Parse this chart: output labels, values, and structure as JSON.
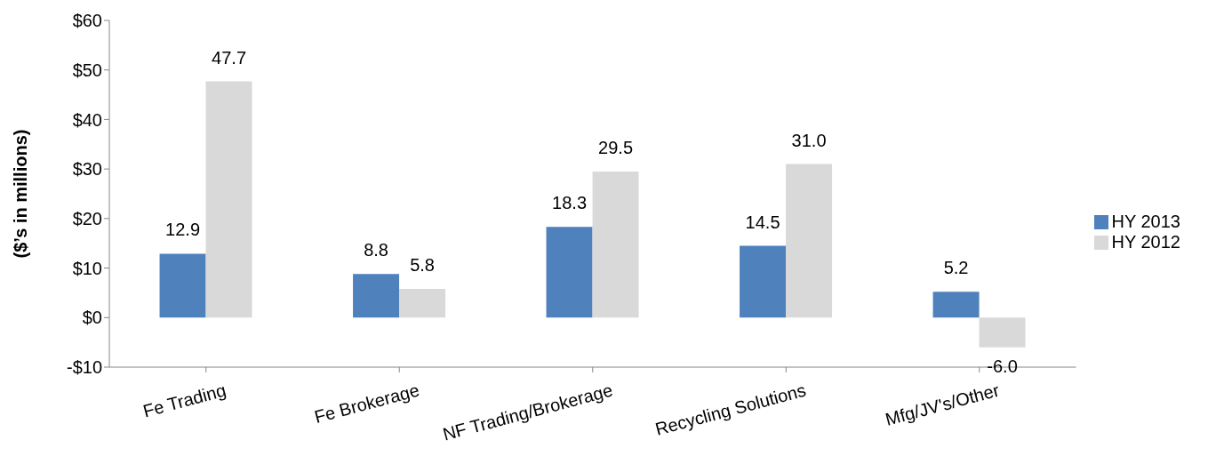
{
  "chart_data": {
    "type": "bar",
    "ylabel": "($’s in millions)",
    "categories": [
      "Fe Trading",
      "Fe Brokerage",
      "NF Trading/Brokerage",
      "Recycling Solutions",
      "Mfg/JV's/Other"
    ],
    "series": [
      {
        "name": "HY 2013",
        "color": "#4f81bd",
        "values": [
          12.9,
          8.8,
          18.3,
          14.5,
          5.2
        ],
        "value_labels": [
          "12.9",
          "8.8",
          "18.3",
          "14.5",
          "5.2"
        ]
      },
      {
        "name": "HY 2012",
        "color": "#d9d9d9",
        "values": [
          47.7,
          5.8,
          29.5,
          31.0,
          -6.0
        ],
        "value_labels": [
          "47.7",
          "5.8",
          "29.5",
          "31.0",
          "-6.0"
        ]
      }
    ],
    "ylim": [
      -10,
      60
    ],
    "yticks": [
      {
        "value": -10,
        "label": "-$10"
      },
      {
        "value": 0,
        "label": "$0"
      },
      {
        "value": 10,
        "label": "$10"
      },
      {
        "value": 20,
        "label": "$20"
      },
      {
        "value": 30,
        "label": "$30"
      },
      {
        "value": 40,
        "label": "$40"
      },
      {
        "value": 50,
        "label": "$50"
      },
      {
        "value": 60,
        "label": "$60"
      }
    ],
    "grid": false,
    "legend": "right"
  }
}
